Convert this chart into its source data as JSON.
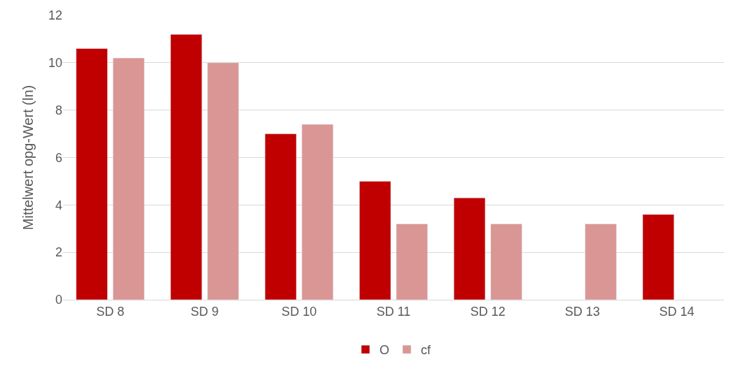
{
  "chart_data": {
    "type": "bar",
    "ylabel": "Mittelwert opg-Wert (ln)",
    "categories": [
      "SD 8",
      "SD 9",
      "SD 10",
      "SD 11",
      "SD 12",
      "SD 13",
      "SD 14"
    ],
    "series": [
      {
        "name": "O",
        "color": "#c00000",
        "values": [
          10.6,
          11.2,
          7.0,
          5.0,
          4.3,
          null,
          3.6
        ]
      },
      {
        "name": "cf",
        "color": "#da9694",
        "values": [
          10.2,
          10.0,
          7.4,
          3.2,
          3.2,
          3.2,
          null
        ]
      }
    ],
    "ylim": [
      0,
      12
    ],
    "yticks": [
      0,
      2,
      4,
      6,
      8,
      10,
      12
    ],
    "grid": "y",
    "legend": "bottom"
  }
}
